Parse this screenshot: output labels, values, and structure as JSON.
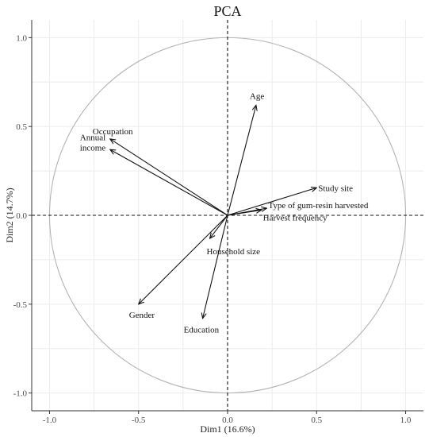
{
  "chart_data": {
    "type": "scatter",
    "subtype": "pca-variable-correlation-circle",
    "title": "PCA",
    "xlabel": "Dim1 (16.6%)",
    "ylabel": "Dim2 (14.7%)",
    "xlim": [
      -1.1,
      1.1
    ],
    "ylim": [
      -1.1,
      1.1
    ],
    "xticks": [
      {
        "value": -1.0,
        "label": "-1.0"
      },
      {
        "value": -0.5,
        "label": "-0.5"
      },
      {
        "value": 0.0,
        "label": "0.0"
      },
      {
        "value": 0.5,
        "label": "0.5"
      },
      {
        "value": 1.0,
        "label": "1.0"
      }
    ],
    "yticks": [
      {
        "value": -1.0,
        "label": "-1.0"
      },
      {
        "value": -0.5,
        "label": "-0.5"
      },
      {
        "value": 0.0,
        "label": "0.0"
      },
      {
        "value": 0.5,
        "label": "0.5"
      },
      {
        "value": 1.0,
        "label": "1.0"
      }
    ],
    "grid": true,
    "unit_circle": true,
    "variables": [
      {
        "name": "Age",
        "lines": [
          "Age"
        ],
        "x": 0.16,
        "y": 0.62
      },
      {
        "name": "Occupation",
        "lines": [
          "Occupation"
        ],
        "x": -0.66,
        "y": 0.43
      },
      {
        "name": "Annual income",
        "lines": [
          "Annual",
          "income"
        ],
        "x": -0.66,
        "y": 0.37
      },
      {
        "name": "Study site",
        "lines": [
          "Study site"
        ],
        "x": 0.5,
        "y": 0.155
      },
      {
        "name": "Type of gum-resin harvested",
        "lines": [
          "Type of gum-resin harvested"
        ],
        "x": 0.22,
        "y": 0.04
      },
      {
        "name": "Harvest frequency",
        "lines": [
          "Harvest frequency"
        ],
        "x": 0.19,
        "y": 0.03
      },
      {
        "name": "Household size",
        "lines": [
          "Household size"
        ],
        "x": -0.1,
        "y": -0.13
      },
      {
        "name": "Gender",
        "lines": [
          "Gender"
        ],
        "x": -0.5,
        "y": -0.5
      },
      {
        "name": "Education",
        "lines": [
          "Education"
        ],
        "x": -0.14,
        "y": -0.58
      }
    ],
    "colors": {
      "vectors": "#111111",
      "circle": "#b3b3b3",
      "grid": "#ebebeb"
    }
  }
}
